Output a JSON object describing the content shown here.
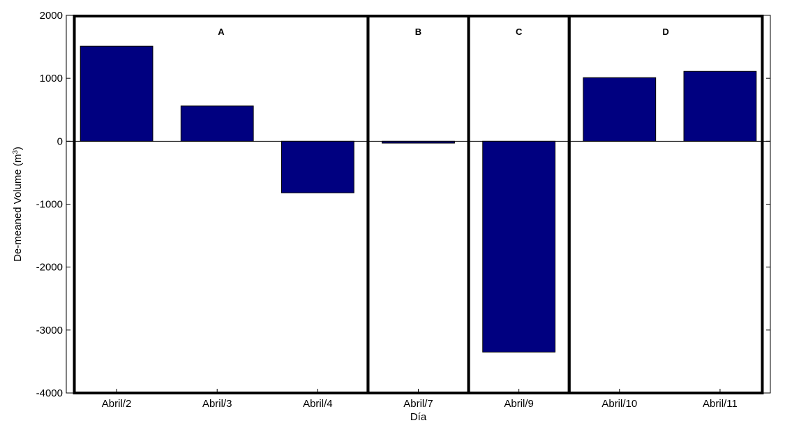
{
  "chart_data": {
    "type": "bar",
    "categories": [
      "Abril/2",
      "Abril/3",
      "Abril/4",
      "Abril/7",
      "Abril/9",
      "Abril/10",
      "Abril/11"
    ],
    "values": [
      1510,
      560,
      -820,
      -30,
      -3350,
      1010,
      1110
    ],
    "title": "",
    "xlabel": "Día",
    "ylabel": "De-meaned Volume (m",
    "ylabel_superscript": "3",
    "ylabel_suffix": ")",
    "ylim": [
      -4000,
      2000
    ],
    "yticks": [
      2000,
      1000,
      0,
      -1000,
      -2000,
      -3000,
      -4000
    ],
    "ytick_labels": [
      "2000",
      "1000",
      "0",
      "-1000",
      "-2000",
      "-3000",
      "-4000"
    ],
    "grid": false,
    "bar_color": "#000080",
    "groups": [
      {
        "label": "A",
        "categories": [
          "Abril/2",
          "Abril/3",
          "Abril/4"
        ]
      },
      {
        "label": "B",
        "categories": [
          "Abril/7"
        ]
      },
      {
        "label": "C",
        "categories": [
          "Abril/9"
        ]
      },
      {
        "label": "D",
        "categories": [
          "Abril/10",
          "Abril/11"
        ]
      }
    ]
  }
}
